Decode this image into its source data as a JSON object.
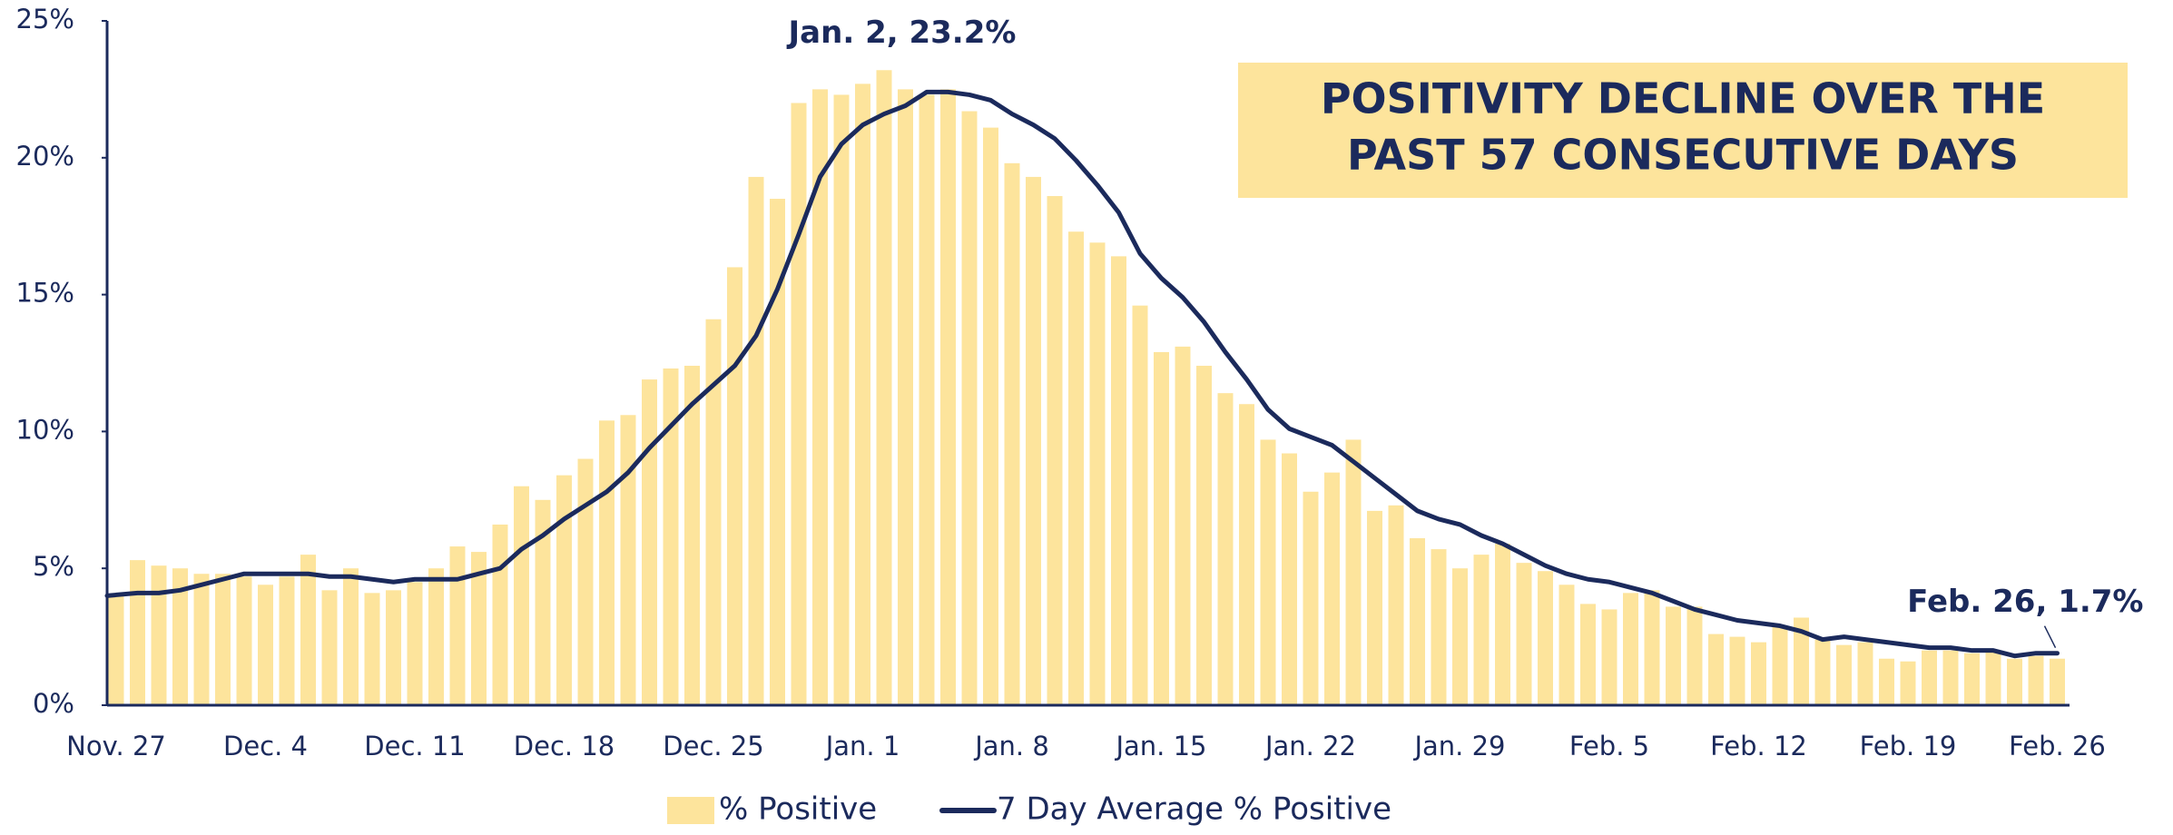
{
  "chart_data": {
    "type": "bar_line",
    "title_lines": [
      "POSITIVITY DECLINE OVER THE",
      "PAST 57 CONSECUTIVE DAYS"
    ],
    "categories": [
      "Nov. 27",
      null,
      null,
      null,
      null,
      null,
      null,
      "Dec. 4",
      null,
      null,
      null,
      null,
      null,
      null,
      "Dec. 11",
      null,
      null,
      null,
      null,
      null,
      null,
      "Dec. 18",
      null,
      null,
      null,
      null,
      null,
      null,
      "Dec. 25",
      null,
      null,
      null,
      null,
      null,
      null,
      "Jan. 1",
      null,
      null,
      null,
      null,
      null,
      null,
      "Jan. 8",
      null,
      null,
      null,
      null,
      null,
      null,
      "Jan. 15",
      null,
      null,
      null,
      null,
      null,
      null,
      "Jan. 22",
      null,
      null,
      null,
      null,
      null,
      null,
      "Jan. 29",
      null,
      null,
      null,
      null,
      null,
      null,
      "Feb. 5",
      null,
      null,
      null,
      null,
      null,
      null,
      "Feb. 12",
      null,
      null,
      null,
      null,
      null,
      null,
      "Feb. 19",
      null,
      null,
      null,
      null,
      null,
      null,
      "Feb. 26"
    ],
    "series": [
      {
        "name": "% Positive",
        "kind": "bar",
        "color": "#fde49c",
        "values": [
          4.0,
          5.3,
          5.1,
          5.0,
          4.8,
          4.8,
          4.7,
          4.4,
          4.7,
          5.5,
          4.2,
          5.0,
          4.1,
          4.2,
          4.5,
          5.0,
          5.8,
          5.6,
          6.6,
          8.0,
          7.5,
          8.4,
          9.0,
          10.4,
          10.6,
          11.9,
          12.3,
          12.4,
          14.1,
          16.0,
          19.3,
          18.5,
          22.0,
          22.5,
          22.3,
          22.7,
          23.2,
          22.5,
          22.3,
          22.5,
          21.7,
          21.1,
          19.8,
          19.3,
          18.6,
          17.3,
          16.9,
          16.4,
          14.6,
          12.9,
          13.1,
          12.4,
          11.4,
          11.0,
          9.7,
          9.2,
          7.8,
          8.5,
          9.7,
          7.1,
          7.3,
          6.1,
          5.7,
          5.0,
          5.5,
          5.9,
          5.2,
          4.9,
          4.4,
          3.7,
          3.5,
          4.1,
          4.2,
          3.6,
          3.6,
          2.6,
          2.5,
          2.3,
          2.9,
          3.2,
          2.4,
          2.2,
          2.3,
          1.7,
          1.6,
          2.0,
          2.0,
          1.9,
          2.0,
          1.7,
          1.8,
          1.7
        ]
      },
      {
        "name": "7 Day Average % Positive",
        "kind": "line",
        "color": "#1b2a5c",
        "values": [
          4.0,
          4.1,
          4.1,
          4.2,
          4.4,
          4.6,
          4.8,
          4.8,
          4.8,
          4.8,
          4.7,
          4.7,
          4.6,
          4.5,
          4.6,
          4.6,
          4.6,
          4.8,
          5.0,
          5.7,
          6.2,
          6.8,
          7.3,
          7.8,
          8.5,
          9.4,
          10.2,
          11.0,
          11.7,
          12.4,
          13.5,
          15.2,
          17.2,
          19.3,
          20.5,
          21.2,
          21.6,
          21.9,
          22.4,
          22.4,
          22.3,
          22.1,
          21.6,
          21.2,
          20.7,
          19.9,
          19.0,
          18.0,
          16.5,
          15.6,
          14.9,
          14.0,
          12.9,
          11.9,
          10.8,
          10.1,
          9.8,
          9.5,
          8.9,
          8.3,
          7.7,
          7.1,
          6.8,
          6.6,
          6.2,
          5.9,
          5.5,
          5.1,
          4.8,
          4.6,
          4.5,
          4.3,
          4.1,
          3.8,
          3.5,
          3.3,
          3.1,
          3.0,
          2.9,
          2.7,
          2.4,
          2.5,
          2.4,
          2.3,
          2.2,
          2.1,
          2.1,
          2.0,
          2.0,
          1.8,
          1.9,
          1.9
        ]
      }
    ],
    "annotations": [
      {
        "text": "Jan. 2, 23.2%",
        "index": 36
      },
      {
        "text": "Feb. 26, 1.7%",
        "index": 91
      }
    ],
    "ylim": [
      0,
      25
    ],
    "yticks": [
      {
        "value": 0,
        "label": "0%"
      },
      {
        "value": 5,
        "label": "5%"
      },
      {
        "value": 10,
        "label": "10%"
      },
      {
        "value": 15,
        "label": "15%"
      },
      {
        "value": 20,
        "label": "20%"
      },
      {
        "value": 25,
        "label": "25%"
      }
    ],
    "legend": "bottom",
    "grid": false
  }
}
